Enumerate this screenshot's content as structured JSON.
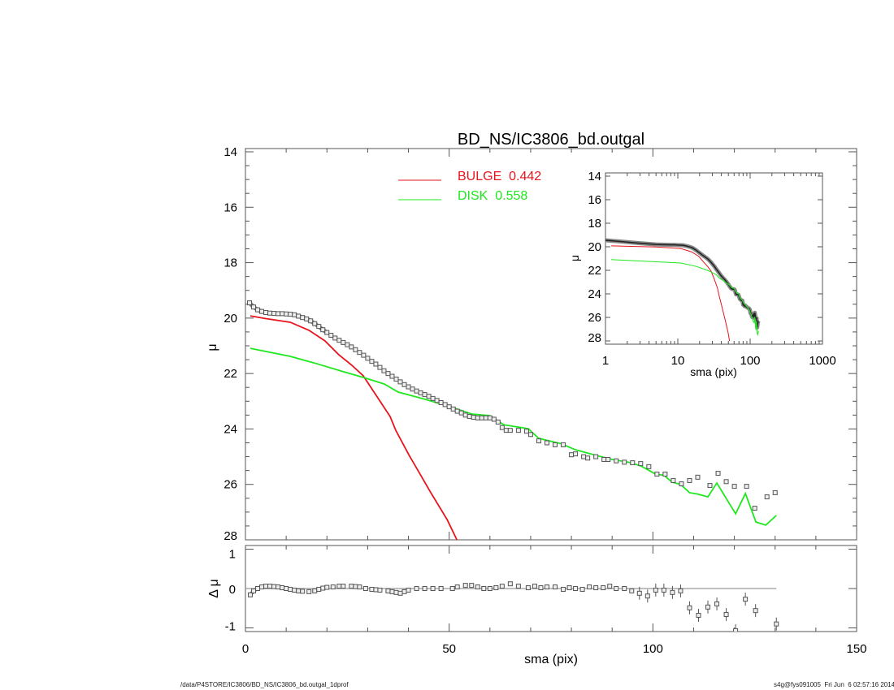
{
  "footer": {
    "path": "/data/P4STORE/IC3806/BD_NS/IC3806_bd.outgal_1dprof",
    "stamp": "s4g@fys091005  Fri Jun  6 02:57:16 2014"
  },
  "colors": {
    "bulge": "#e8141c",
    "disk": "#1ee81e",
    "data": "#555555",
    "axis": "#555555"
  },
  "chart_data": [
    {
      "type": "line",
      "panel": "main",
      "title": "BD_NS/IC3806_bd.outgal",
      "xlabel": "sma (pix)",
      "ylabel": "μ",
      "xlim": [
        0,
        150
      ],
      "ylim": [
        28,
        14
      ],
      "xticks": [
        "0",
        "50",
        "100",
        "150"
      ],
      "yticks": [
        "14",
        "16",
        "18",
        "20",
        "22",
        "24",
        "26",
        "28"
      ],
      "legend": {
        "placement": "top-center",
        "entries": [
          {
            "label": "BULGE  0.442",
            "color": "#e8141c"
          },
          {
            "label": "DISK  0.558",
            "color": "#1ee81e"
          }
        ]
      },
      "observed": {
        "x": [
          1,
          2,
          3,
          4,
          5,
          6,
          7,
          8,
          9,
          10,
          11,
          12,
          13,
          14,
          15,
          16,
          17,
          18,
          19,
          20,
          21,
          22,
          23,
          24,
          25,
          26,
          27,
          28,
          29,
          30,
          31,
          32,
          33,
          34,
          35,
          36,
          37,
          38,
          39,
          40,
          41,
          42,
          43,
          44,
          45,
          46,
          47,
          48,
          49,
          50,
          51,
          52,
          53,
          54,
          55,
          56,
          57,
          58,
          59,
          60,
          61,
          62,
          63,
          64,
          65,
          67,
          69,
          70,
          72,
          74,
          76,
          78,
          80,
          81,
          83,
          84,
          86,
          88,
          89,
          91,
          93,
          95,
          97,
          99,
          101,
          103,
          105,
          107,
          109,
          111,
          114,
          116,
          118,
          120,
          123,
          125,
          128,
          130
        ],
        "y": [
          19.45,
          19.6,
          19.7,
          19.76,
          19.8,
          19.82,
          19.83,
          19.84,
          19.84,
          19.85,
          19.86,
          19.88,
          19.93,
          19.98,
          20.03,
          20.1,
          20.2,
          20.3,
          20.42,
          20.52,
          20.62,
          20.72,
          20.8,
          20.88,
          20.96,
          21.04,
          21.14,
          21.24,
          21.34,
          21.45,
          21.56,
          21.66,
          21.78,
          21.9,
          22.0,
          22.1,
          22.2,
          22.3,
          22.4,
          22.48,
          22.56,
          22.63,
          22.7,
          22.76,
          22.82,
          22.9,
          22.97,
          23.05,
          23.12,
          23.2,
          23.28,
          23.36,
          23.42,
          23.5,
          23.55,
          23.58,
          23.6,
          23.6,
          23.6,
          23.6,
          23.65,
          23.75,
          23.95,
          24.05,
          24.05,
          24.05,
          24.08,
          24.2,
          24.43,
          24.5,
          24.57,
          24.57,
          24.93,
          24.9,
          25.0,
          25.05,
          25.0,
          25.1,
          25.1,
          25.15,
          25.2,
          25.22,
          25.25,
          25.36,
          25.63,
          25.63,
          25.86,
          25.98,
          25.86,
          25.74,
          26.04,
          25.6,
          25.9,
          26.07,
          26.07,
          26.86,
          26.45,
          26.3
        ]
      },
      "series": [
        {
          "name": "BULGE",
          "x": [
            1.2,
            5,
            11,
            15.6,
            19.5,
            22.9,
            26.1,
            28.9,
            32.1,
            35.5,
            36.9,
            40.1,
            45.5,
            49.5,
            51.9
          ],
          "y": [
            19.92,
            20.02,
            20.15,
            20.44,
            20.82,
            21.32,
            21.7,
            22.08,
            22.79,
            23.55,
            24.05,
            24.93,
            26.3,
            27.27,
            28.0
          ]
        },
        {
          "name": "DISK",
          "x": [
            1.2,
            11,
            17.6,
            24.2,
            28.9,
            34.1,
            37.5,
            44.1,
            50.8,
            55.5,
            60,
            63.4,
            69.4,
            72,
            77.4,
            81,
            86,
            90,
            94,
            97,
            100.7,
            102.7,
            104.7,
            106.8,
            109,
            111,
            113.5,
            115.7,
            120.3,
            122.7,
            125.3,
            127.7,
            130.3
          ],
          "y": [
            21.09,
            21.38,
            21.65,
            21.94,
            22.14,
            22.38,
            22.67,
            22.93,
            23.22,
            23.46,
            23.52,
            23.85,
            23.99,
            24.34,
            24.53,
            24.75,
            24.95,
            25.1,
            25.2,
            25.33,
            25.63,
            25.67,
            25.92,
            26.0,
            26.3,
            26.35,
            26.45,
            25.95,
            27.06,
            26.33,
            27.36,
            27.47,
            27.12
          ]
        }
      ]
    },
    {
      "type": "scatter",
      "panel": "residual",
      "xlabel": "sma (pix)",
      "ylabel": "Δ μ",
      "xlim": [
        0,
        150
      ],
      "ylim": [
        -1,
        1
      ],
      "yticks": [
        "1",
        "0",
        "-1"
      ],
      "x": [
        1.2,
        2,
        3,
        4,
        5,
        6,
        7,
        8,
        9,
        10,
        11,
        12,
        13,
        14,
        15.6,
        17,
        18,
        19,
        20,
        21.5,
        23,
        24,
        26,
        27,
        28,
        29.5,
        31,
        32,
        33,
        35,
        36,
        37,
        38,
        39,
        40,
        42,
        44,
        46,
        48,
        50.8,
        52,
        54,
        55.5,
        57,
        58.5,
        60,
        61.5,
        63,
        65,
        67,
        69.4,
        71,
        72.5,
        74,
        76,
        78,
        79.5,
        81,
        82.7,
        84.4,
        86,
        87.8,
        89.4,
        91,
        93,
        94.8,
        96.7,
        98.7,
        100.7,
        102.7,
        104.8,
        106.8,
        109,
        111.2,
        113.5,
        115.7,
        118,
        120.3,
        122.7,
        125.2,
        130.3
      ],
      "y": [
        -0.16,
        -0.06,
        0.0,
        0.04,
        0.06,
        0.06,
        0.05,
        0.04,
        0.02,
        0.0,
        -0.02,
        -0.04,
        -0.06,
        -0.07,
        -0.08,
        -0.06,
        -0.02,
        0.01,
        0.03,
        0.04,
        0.06,
        0.06,
        0.06,
        0.05,
        0.04,
        0.0,
        -0.02,
        -0.03,
        -0.04,
        -0.06,
        -0.08,
        -0.1,
        -0.12,
        -0.08,
        -0.04,
        0.0,
        0.0,
        0.0,
        0.0,
        0.0,
        0.04,
        0.08,
        0.08,
        0.04,
        0.0,
        0.0,
        0.02,
        0.06,
        0.12,
        0.06,
        0.02,
        0.06,
        0.02,
        0.04,
        0.04,
        -0.02,
        0.02,
        0.0,
        -0.02,
        0.04,
        0.02,
        0.02,
        0.06,
        0.0,
        0.0,
        -0.06,
        -0.12,
        -0.19,
        -0.04,
        -0.04,
        -0.1,
        -0.06,
        -0.49,
        -0.68,
        -0.47,
        -0.39,
        -0.66,
        -1.07,
        -0.27,
        -0.56,
        -0.9
      ]
    },
    {
      "type": "line",
      "panel": "inset",
      "xlabel": "sma (pix)",
      "ylabel": "μ",
      "xscale": "log",
      "xlim": [
        1,
        1000
      ],
      "ylim": [
        28,
        14
      ],
      "xticks": [
        "1",
        "10",
        "100",
        "1000"
      ],
      "yticks": [
        "14",
        "16",
        "18",
        "20",
        "22",
        "24",
        "26",
        "28"
      ]
    }
  ]
}
